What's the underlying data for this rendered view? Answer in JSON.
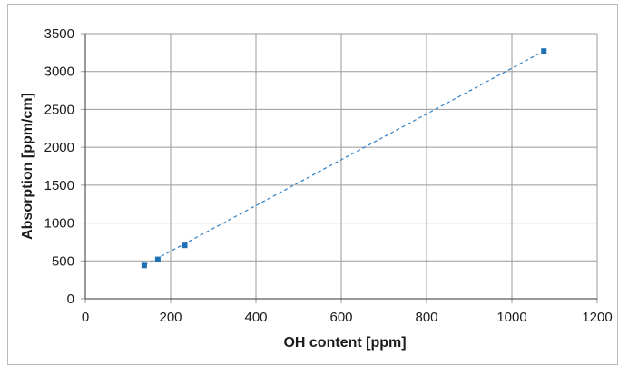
{
  "chart_data": {
    "type": "scatter",
    "title": "",
    "xlabel": "OH content [ppm]",
    "ylabel": "Absorption [ppm/cm]",
    "xlim": [
      0,
      1200
    ],
    "ylim": [
      0,
      3500
    ],
    "xticks": [
      0,
      200,
      400,
      600,
      800,
      1000,
      1200
    ],
    "yticks": [
      0,
      500,
      1000,
      1500,
      2000,
      2500,
      3000,
      3500
    ],
    "grid": true,
    "legend": "none",
    "series": [
      {
        "points": [
          {
            "x": 138,
            "y": 440
          },
          {
            "x": 170,
            "y": 520
          },
          {
            "x": 233,
            "y": 705
          },
          {
            "x": 1075,
            "y": 3270
          }
        ]
      }
    ],
    "trendline": {
      "type": "linear",
      "style": "dashed",
      "from": {
        "x": 138,
        "y": 440
      },
      "to": {
        "x": 1075,
        "y": 3270
      }
    },
    "colors": {
      "marker": "#1f6fb2",
      "trendline": "#2f7fc4",
      "grid": "#9a9a9a",
      "axis": "#333333"
    }
  }
}
